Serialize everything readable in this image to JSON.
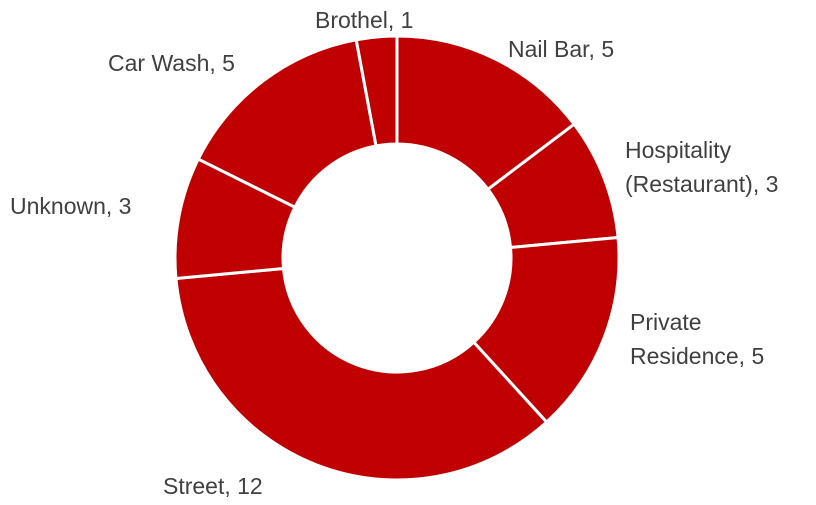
{
  "chart_data": {
    "type": "donut",
    "color": "#c00000",
    "values": [
      5,
      3,
      5,
      12,
      3,
      5,
      1
    ],
    "value_labels": [
      [
        "Nail Bar, 5"
      ],
      [
        "Hospitality",
        "(Restaurant), 3"
      ],
      [
        "Private",
        "Residence, 5"
      ],
      [
        "Street, 12"
      ],
      [
        "Unknown, 3"
      ],
      [
        "Car Wash, 5"
      ],
      [
        "Brothel, 1"
      ]
    ]
  }
}
